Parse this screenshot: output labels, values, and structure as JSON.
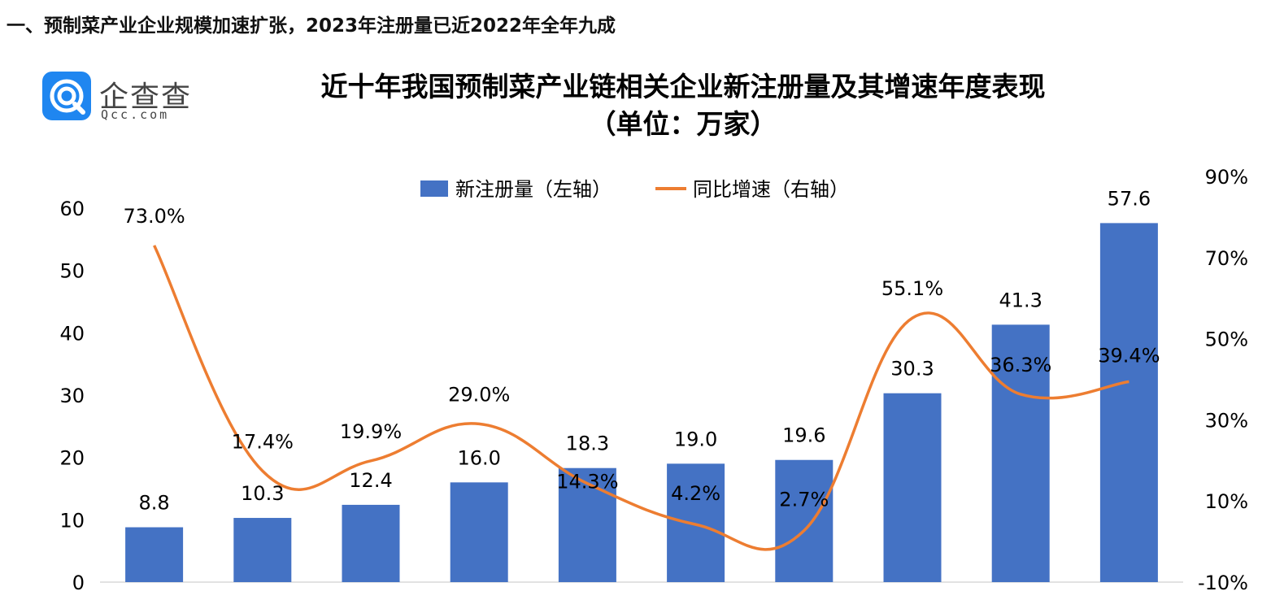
{
  "page": {
    "heading": "一、预制菜产业企业规模加速扩张，2023年注册量已近2022年全年九成"
  },
  "logo": {
    "name": "企查查",
    "domain": "Qcc.com"
  },
  "chart_data": {
    "type": "bar",
    "title": "近十年我国预制菜产业链相关企业新注册量及其增速年度表现",
    "subtitle": "（单位：万家）",
    "categories": [
      "",
      "",
      "",
      "",
      "",
      "",
      "",
      "",
      "",
      ""
    ],
    "series": [
      {
        "name": "新注册量（左轴）",
        "type": "bar",
        "axis": "left",
        "color": "#4472c4",
        "values": [
          8.8,
          10.3,
          12.4,
          16.0,
          18.3,
          19.0,
          19.6,
          30.3,
          41.3,
          57.6
        ],
        "labels": [
          "8.8",
          "10.3",
          "12.4",
          "16.0",
          "18.3",
          "19.0",
          "19.6",
          "30.3",
          "41.3",
          "57.6"
        ]
      },
      {
        "name": "同比增速（右轴）",
        "type": "line",
        "axis": "right",
        "color": "#ed7d31",
        "values": [
          73.0,
          17.4,
          19.9,
          29.0,
          14.3,
          4.2,
          2.7,
          55.1,
          36.3,
          39.4
        ],
        "labels": [
          "73.0%",
          "17.4%",
          "19.9%",
          "29.0%",
          "14.3%",
          "4.2%",
          "2.7%",
          "55.1%",
          "36.3%",
          "39.4%"
        ]
      }
    ],
    "y_left": {
      "ylim": [
        0,
        60
      ],
      "ticks": [
        "0",
        "10",
        "20",
        "30",
        "40",
        "50",
        "60"
      ]
    },
    "y_right": {
      "ylim": [
        -10,
        90
      ],
      "ticks": [
        "-10%",
        "10%",
        "30%",
        "50%",
        "70%",
        "90%"
      ]
    },
    "legend_position": "top-center",
    "grid": false
  }
}
